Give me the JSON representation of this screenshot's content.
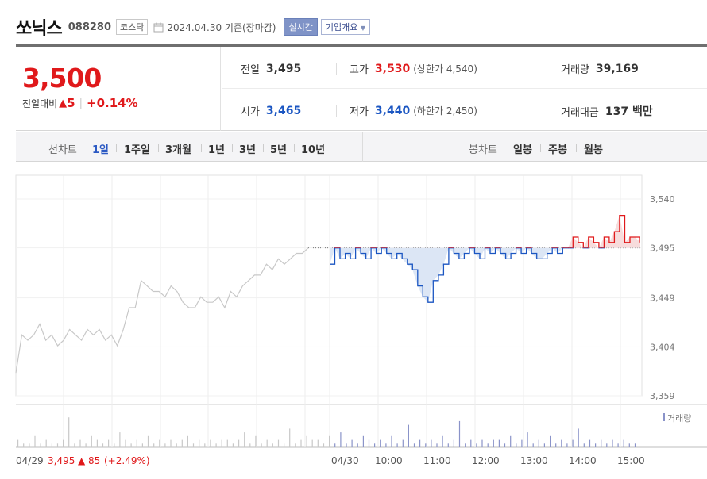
{
  "header": {
    "company_name": "쏘닉스",
    "code": "088280",
    "market": "코스닥",
    "date_text": "2024.04.30 기준(장마감)",
    "realtime_label": "실시간",
    "company_info_label": "기업개요",
    "company_info_icon": "chevron-down-icon"
  },
  "price": {
    "current": "3,500",
    "change_label": "전일대비",
    "change_value": "5",
    "change_pct": "+0.14%",
    "direction": "up"
  },
  "stats": {
    "prev_close_label": "전일",
    "prev_close": "3,495",
    "open_label": "시가",
    "open": "3,465",
    "high_label": "고가",
    "high": "3,530",
    "upper_limit": "(상한가 4,540)",
    "low_label": "저가",
    "low": "3,440",
    "lower_limit": "(하한가 2,450)",
    "volume_label": "거래량",
    "volume": "39,169",
    "amount_label": "거래대금",
    "amount": "137 백만"
  },
  "tabs": {
    "line_title": "선차트",
    "line_periods": [
      "1일",
      "1주일",
      "3개월",
      "1년",
      "3년",
      "5년",
      "10년"
    ],
    "active_period": "1일",
    "candle_title": "봉차트",
    "candle_periods": [
      "일봉",
      "주봉",
      "월봉"
    ]
  },
  "colors": {
    "up": "#e0191b",
    "down": "#1b56c2",
    "prev_day_line": "#c8c8c8",
    "volume": "#8a93c9"
  },
  "chart_data": {
    "type": "line",
    "y_ticks": [
      "3,540",
      "3,495",
      "3,449",
      "3,404",
      "3,359"
    ],
    "ylim": [
      3359,
      3540
    ],
    "reference_price": 3495,
    "x_ticks": [
      "04/30",
      "10:00",
      "11:00",
      "12:00",
      "13:00",
      "14:00",
      "15:00"
    ],
    "volume_legend": "거래량",
    "prev_day": {
      "date": "04/29",
      "close": "3,495",
      "change_icon": "up-triangle-icon",
      "change": "85",
      "change_pct": "(+2.49%)",
      "values": [
        3380,
        3415,
        3410,
        3415,
        3425,
        3410,
        3415,
        3405,
        3410,
        3420,
        3415,
        3410,
        3420,
        3415,
        3420,
        3410,
        3415,
        3405,
        3420,
        3440,
        3440,
        3465,
        3460,
        3455,
        3455,
        3450,
        3460,
        3455,
        3445,
        3440,
        3440,
        3450,
        3445,
        3445,
        3450,
        3440,
        3455,
        3450,
        3460,
        3465,
        3470,
        3470,
        3480,
        3475,
        3485,
        3480,
        3485,
        3490,
        3490,
        3495
      ]
    },
    "today": {
      "date": "04/30",
      "values": [
        3480,
        3495,
        3485,
        3490,
        3485,
        3495,
        3490,
        3485,
        3495,
        3490,
        3495,
        3490,
        3485,
        3490,
        3485,
        3480,
        3475,
        3460,
        3450,
        3445,
        3465,
        3470,
        3480,
        3495,
        3490,
        3485,
        3490,
        3495,
        3490,
        3485,
        3495,
        3490,
        3495,
        3490,
        3485,
        3490,
        3495,
        3490,
        3495,
        3490,
        3485,
        3485,
        3490,
        3495,
        3490,
        3495,
        3495,
        3505,
        3500,
        3495,
        3505,
        3500,
        3495,
        3505,
        3500,
        3510,
        3525,
        3500,
        3505,
        3505,
        3500
      ]
    },
    "volume": [
      2,
      1,
      1,
      3,
      1,
      2,
      1,
      1,
      2,
      8,
      1,
      2,
      1,
      3,
      2,
      1,
      2,
      1,
      4,
      2,
      1,
      2,
      1,
      3,
      1,
      2,
      1,
      2,
      1,
      2,
      3,
      1,
      2,
      1,
      2,
      1,
      2,
      2,
      1,
      2,
      4,
      1,
      3,
      1,
      2,
      1,
      2,
      1,
      5,
      1,
      2,
      3,
      2,
      2,
      1,
      3,
      1,
      4,
      1,
      2,
      1,
      3,
      2,
      1,
      2,
      1,
      3,
      1,
      2,
      6,
      1,
      2,
      1,
      2,
      1,
      3,
      1,
      2,
      7,
      1,
      2,
      1,
      2,
      1,
      2,
      2,
      1,
      3,
      1,
      2,
      4,
      1,
      2,
      1,
      3,
      1,
      2,
      1,
      2,
      5,
      1,
      2,
      1,
      2,
      1,
      2,
      1,
      2,
      1,
      1
    ]
  }
}
